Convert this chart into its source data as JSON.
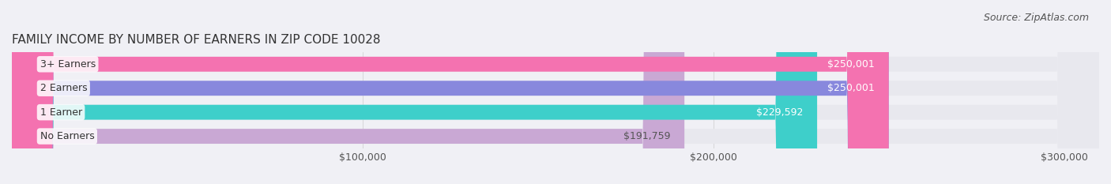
{
  "title": "FAMILY INCOME BY NUMBER OF EARNERS IN ZIP CODE 10028",
  "source": "Source: ZipAtlas.com",
  "categories": [
    "No Earners",
    "1 Earner",
    "2 Earners",
    "3+ Earners"
  ],
  "values": [
    191759,
    229592,
    250001,
    250001
  ],
  "bar_colors": [
    "#c9a8d4",
    "#3ecfca",
    "#8888dd",
    "#f472b0"
  ],
  "bar_bg_color": "#e8e8ee",
  "label_colors": [
    "#555555",
    "#ffffff",
    "#ffffff",
    "#ffffff"
  ],
  "xlim": [
    0,
    310000
  ],
  "xticks": [
    100000,
    200000,
    300000
  ],
  "xtick_labels": [
    "$100,000",
    "$200,000",
    "$300,000"
  ],
  "title_fontsize": 11,
  "source_fontsize": 9,
  "tick_fontsize": 9,
  "bar_label_fontsize": 9,
  "category_fontsize": 9,
  "background_color": "#f0f0f5"
}
